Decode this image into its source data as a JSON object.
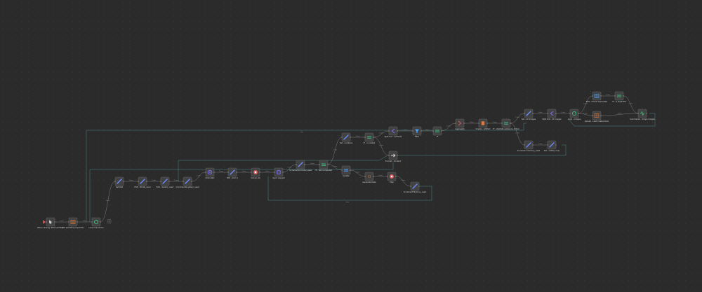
{
  "workflow": {
    "nodes": [
      {
        "id": "n1",
        "label": "When clicking 'Test workflow'",
        "sub": "",
        "icon": "pointer-icon",
        "color": "#e0e0e0"
      },
      {
        "id": "n2",
        "label": "Set workflow properties",
        "sub": "",
        "icon": "table-icon",
        "color": "#e07a3a"
      },
      {
        "id": "n3",
        "label": "Loop Over Items",
        "sub": "",
        "icon": "loop-icon",
        "color": "#3fbf7f"
      },
      {
        "id": "n4",
        "label": "Set Dell",
        "sub": "",
        "icon": "pencil-icon",
        "color": "#6d8cff"
      },
      {
        "id": "n5",
        "label": "Edit - Model_used",
        "sub": "",
        "icon": "pencil-icon",
        "color": "#6d8cff"
      },
      {
        "id": "n6",
        "label": "Edit - Gallery_used",
        "sub": "",
        "icon": "pencil-icon",
        "color": "#6d8cff"
      },
      {
        "id": "n7",
        "label": "Incremental gallery_used",
        "sub": "",
        "icon": "pencil-icon",
        "color": "#6d8cff"
      },
      {
        "id": "n8",
        "label": "Chat start",
        "sub": "",
        "icon": "chat-icon",
        "color": "#7b6dff"
      },
      {
        "id": "n9",
        "label": "Edit - item 1",
        "sub": "",
        "icon": "pencil-icon",
        "color": "#6d8cff"
      },
      {
        "id": "n10",
        "label": "Cancel job",
        "sub": "",
        "icon": "stop-icon",
        "color": "#e05a5a"
      },
      {
        "id": "n11",
        "label": "Send request",
        "sub": "",
        "icon": "globe-icon",
        "color": "#7b6dff"
      },
      {
        "id": "n12",
        "label": "Incremental model_used",
        "sub": "",
        "icon": "pencil-icon",
        "color": "#6d8cff"
      },
      {
        "id": "n13",
        "label": "IF - Not completed",
        "sub": "",
        "icon": "if-icon",
        "color": "#3fbf7f"
      },
      {
        "id": "n14",
        "label": "Update",
        "sub": "",
        "icon": "switch-icon",
        "color": "#4aa3ff"
      },
      {
        "id": "n15",
        "label": "Set - numbers",
        "sub": "",
        "icon": "pencil-icon",
        "color": "#6d8cff"
      },
      {
        "id": "n16",
        "label": "IF - is nested",
        "sub": "",
        "icon": "if-icon",
        "color": "#3fbf7f"
      },
      {
        "id": "n17",
        "label": "Format - Content",
        "sub": "",
        "icon": "arrow-right-icon",
        "color": "#e0e0e0"
      },
      {
        "id": "n18",
        "label": "Generate Data",
        "sub": "",
        "icon": "code-icon",
        "color": "#e07a3a"
      },
      {
        "id": "n19",
        "label": "Stop",
        "sub": "",
        "icon": "stop-icon",
        "color": "#e05a5a"
      },
      {
        "id": "n20",
        "label": "Increment Memory_used",
        "sub": "",
        "icon": "pencil-icon",
        "color": "#6d8cff"
      },
      {
        "id": "n21",
        "label": "Split Out - Artifacts",
        "sub": "",
        "icon": "split-icon",
        "color": "#7b6dff"
      },
      {
        "id": "n22",
        "label": "Filter",
        "sub": "",
        "icon": "filter-icon",
        "color": "#4aa3ff"
      },
      {
        "id": "n23",
        "label": "IF",
        "sub": "",
        "icon": "if-icon",
        "color": "#3fbf7f"
      },
      {
        "id": "n24",
        "label": "Aggregate",
        "sub": "",
        "icon": "aggregate-icon",
        "color": "#e05a5a"
      },
      {
        "id": "n25",
        "label": "Create - Artifact",
        "sub": "",
        "icon": "file-icon",
        "color": "#e07a3a"
      },
      {
        "id": "n26",
        "label": "IF - Validate existence of tool",
        "sub": "",
        "icon": "if-icon",
        "color": "#3fbf7f"
      },
      {
        "id": "n27",
        "label": "Set - All images",
        "sub": "",
        "icon": "pencil-icon",
        "color": "#6d8cff"
      },
      {
        "id": "n28",
        "label": "Split Out - All images",
        "sub": "",
        "icon": "split-icon",
        "color": "#7b6dff"
      },
      {
        "id": "n29",
        "label": "Loop - images",
        "sub": "",
        "icon": "loop-icon",
        "color": "#3fbf7f"
      },
      {
        "id": "n30",
        "label": "Edit - Check duplicated",
        "sub": "",
        "icon": "table-icon",
        "color": "#4aa3ff"
      },
      {
        "id": "n31",
        "label": "IF - is duplicate",
        "sub": "",
        "icon": "if-icon",
        "color": "#3fbf7f"
      },
      {
        "id": "n32",
        "label": "Upload - Last created item",
        "sub": "",
        "icon": "table-icon",
        "color": "#e07a3a"
      },
      {
        "id": "n33",
        "label": "Summarize - Single images",
        "sub": "",
        "icon": "summarize-icon",
        "color": "#3fbf7f"
      },
      {
        "id": "n34",
        "label": "Increment memory_used",
        "sub": "",
        "icon": "pencil-icon",
        "color": "#6d8cff"
      },
      {
        "id": "n35",
        "label": "Set - Lottery loop",
        "sub": "",
        "icon": "pencil-icon",
        "color": "#6d8cff"
      }
    ],
    "edge_labels": {
      "item": "1 item",
      "done": "done",
      "loop": "loop",
      "true": "true",
      "false": "false"
    }
  }
}
